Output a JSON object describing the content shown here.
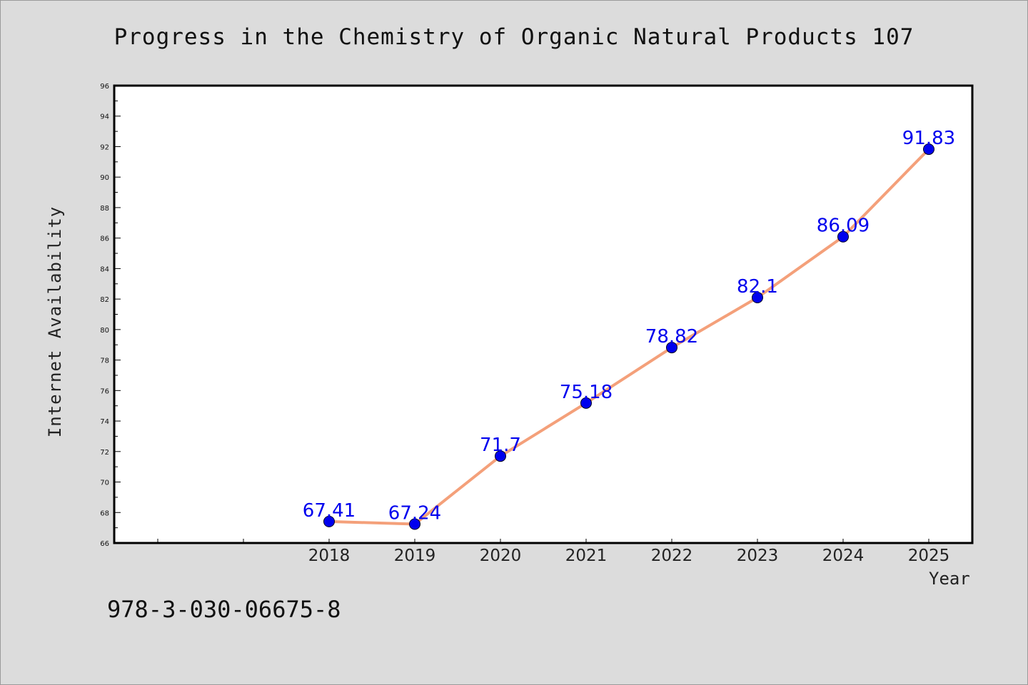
{
  "chart_data": {
    "type": "line",
    "title": "Progress in the Chemistry of Organic Natural Products 107",
    "xlabel": "Year",
    "ylabel": "Internet Availability",
    "x": [
      "2018",
      "2019",
      "2020",
      "2021",
      "2022",
      "2023",
      "2024",
      "2025"
    ],
    "series": [
      {
        "values": [
          67.41,
          67.24,
          71.7,
          75.18,
          78.82,
          82.1,
          86.09,
          91.83
        ],
        "labels": [
          "67.41",
          "67.24",
          "71.7",
          "75.18",
          "78.82",
          "82.1",
          "86.09",
          "91.83"
        ],
        "line_color": "#f4a07a",
        "marker_color": "#0000ee"
      }
    ],
    "ylim": [
      66,
      96
    ],
    "yticks": [
      "66",
      "68",
      "70",
      "72",
      "74",
      "76",
      "78",
      "80",
      "82",
      "84",
      "86",
      "88",
      "90",
      "92",
      "94",
      "96"
    ],
    "grid": false,
    "legend": "none"
  },
  "footer_text": "978-3-030-06675-8"
}
